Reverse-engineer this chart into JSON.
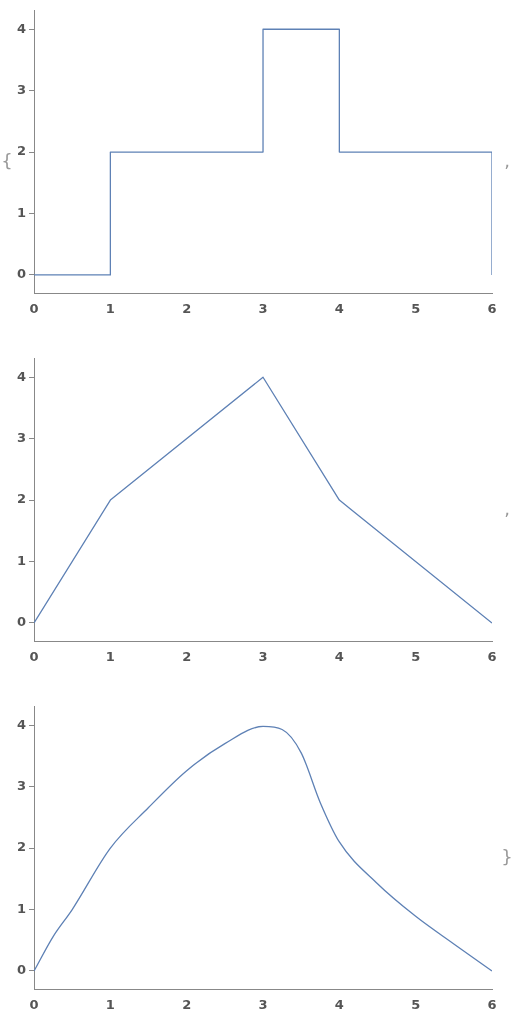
{
  "chart_data": [
    {
      "type": "step",
      "x": [
        0,
        1,
        3,
        4,
        6
      ],
      "values": [
        0,
        2,
        4,
        2,
        0
      ],
      "color": "#5e81b5",
      "xlim": [
        0,
        6
      ],
      "xticks": [
        0,
        1,
        2,
        3,
        4,
        5,
        6
      ],
      "ylim": [
        -0.3,
        4.3
      ],
      "yticks": [
        0,
        1,
        2,
        3,
        4
      ],
      "grid": false,
      "legend": false,
      "marker": "none",
      "line_style": "solid",
      "annotations": [
        "{",
        ","
      ]
    },
    {
      "type": "line",
      "x": [
        0,
        1,
        3,
        4,
        6
      ],
      "values": [
        0,
        2,
        4,
        2,
        0
      ],
      "color": "#5e81b5",
      "xlim": [
        0,
        6
      ],
      "xticks": [
        0,
        1,
        2,
        3,
        4,
        5,
        6
      ],
      "ylim": [
        -0.3,
        4.3
      ],
      "yticks": [
        0,
        1,
        2,
        3,
        4
      ],
      "grid": false,
      "legend": false,
      "marker": "none",
      "line_style": "solid",
      "annotations": [
        ","
      ]
    },
    {
      "type": "line",
      "x": [
        0,
        0.25,
        0.5,
        1,
        1.5,
        2,
        2.5,
        3,
        3.25,
        3.5,
        3.75,
        4,
        4.5,
        5,
        5.5,
        6
      ],
      "values": [
        0,
        0.56,
        1.0,
        2.0,
        2.66,
        3.26,
        3.7,
        3.98,
        3.93,
        3.55,
        2.74,
        2.1,
        1.42,
        0.89,
        0.44,
        0
      ],
      "color": "#5e81b5",
      "xlim": [
        0,
        6
      ],
      "xticks": [
        0,
        1,
        2,
        3,
        4,
        5,
        6
      ],
      "ylim": [
        -0.3,
        4.3
      ],
      "yticks": [
        0,
        1,
        2,
        3,
        4
      ],
      "grid": false,
      "legend": false,
      "marker": "none",
      "line_style": "solid",
      "annotations": [
        "}"
      ]
    }
  ]
}
